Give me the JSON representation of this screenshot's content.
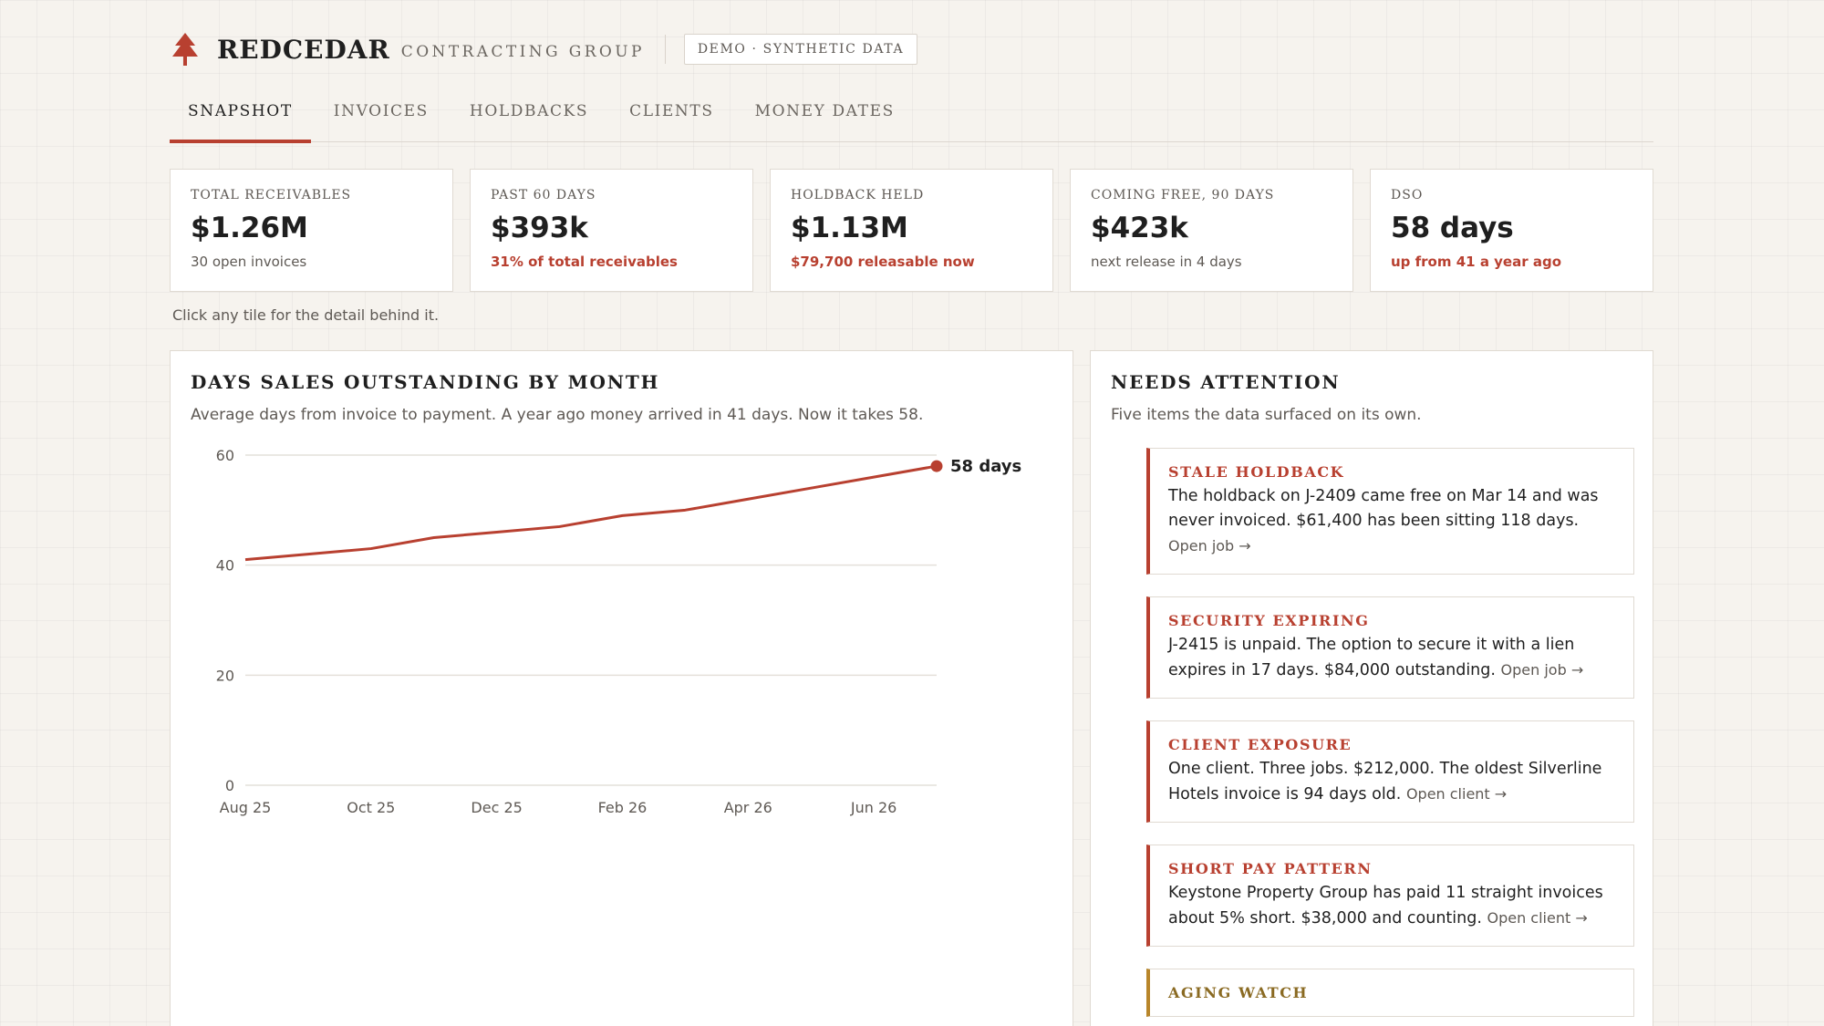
{
  "header": {
    "brand_name": "REDCEDAR",
    "brand_sub": "CONTRACTING GROUP",
    "badge": "DEMO · SYNTHETIC DATA",
    "logo_icon": "tree-icon"
  },
  "tabs": [
    {
      "label": "SNAPSHOT",
      "active": true
    },
    {
      "label": "INVOICES"
    },
    {
      "label": "HOLDBACKS"
    },
    {
      "label": "CLIENTS"
    },
    {
      "label": "MONEY DATES"
    }
  ],
  "kpis": [
    {
      "label": "TOTAL RECEIVABLES",
      "value": "$1.26M",
      "note": "30 open invoices",
      "note_alert": false
    },
    {
      "label": "PAST 60 DAYS",
      "value": "$393k",
      "note": "31% of total receivables",
      "note_alert": true
    },
    {
      "label": "HOLDBACK HELD",
      "value": "$1.13M",
      "note": "$79,700 releasable now",
      "note_alert": true
    },
    {
      "label": "COMING FREE, 90 DAYS",
      "value": "$423k",
      "note": "next release in 4 days",
      "note_alert": false
    },
    {
      "label": "DSO",
      "value": "58 days",
      "note": "up from 41 a year ago",
      "note_alert": true
    }
  ],
  "hint": "Click any tile for the detail behind it.",
  "chart_panel": {
    "title": "DAYS SALES OUTSTANDING BY MONTH",
    "subtitle": "Average days from invoice to payment. A year ago money arrived in 41 days. Now it takes 58."
  },
  "chart_data": {
    "type": "line",
    "x": [
      "Aug 25",
      "Sep 25",
      "Oct 25",
      "Nov 25",
      "Dec 25",
      "Jan 26",
      "Feb 26",
      "Mar 26",
      "Apr 26",
      "May 26",
      "Jun 26",
      "Jul 26"
    ],
    "x_tick_labels": [
      "Aug 25",
      "Oct 25",
      "Dec 25",
      "Feb 26",
      "Apr 26",
      "Jun 26"
    ],
    "values": [
      41,
      42,
      43,
      45,
      46,
      47,
      49,
      50,
      52,
      54,
      56,
      58
    ],
    "end_label": "58 days",
    "ylim": [
      0,
      60
    ],
    "y_ticks": [
      0,
      20,
      40,
      60
    ],
    "grid": true,
    "color": "#b84030"
  },
  "attention": {
    "title": "NEEDS ATTENTION",
    "subtitle": "Five items the data surfaced on its own.",
    "items": [
      {
        "title": "STALE HOLDBACK",
        "body": "The holdback on J-2409 came free on Mar 14 and was never invoiced. $61,400 has been sitting 118 days.",
        "link": "Open job →",
        "tone": "red"
      },
      {
        "title": "SECURITY EXPIRING",
        "body": "J-2415 is unpaid. The option to secure it with a lien expires in 17 days. $84,000 outstanding.",
        "link": "Open job →",
        "tone": "red"
      },
      {
        "title": "CLIENT EXPOSURE",
        "body": "One client. Three jobs. $212,000. The oldest Silverline Hotels invoice is 94 days old.",
        "link": "Open client →",
        "tone": "red"
      },
      {
        "title": "SHORT PAY PATTERN",
        "body": "Keystone Property Group has paid 11 straight invoices about 5% short. $38,000 and counting.",
        "link": "Open client →",
        "tone": "red"
      },
      {
        "title": "AGING WATCH",
        "body": "",
        "link": "",
        "tone": "amber"
      }
    ]
  }
}
